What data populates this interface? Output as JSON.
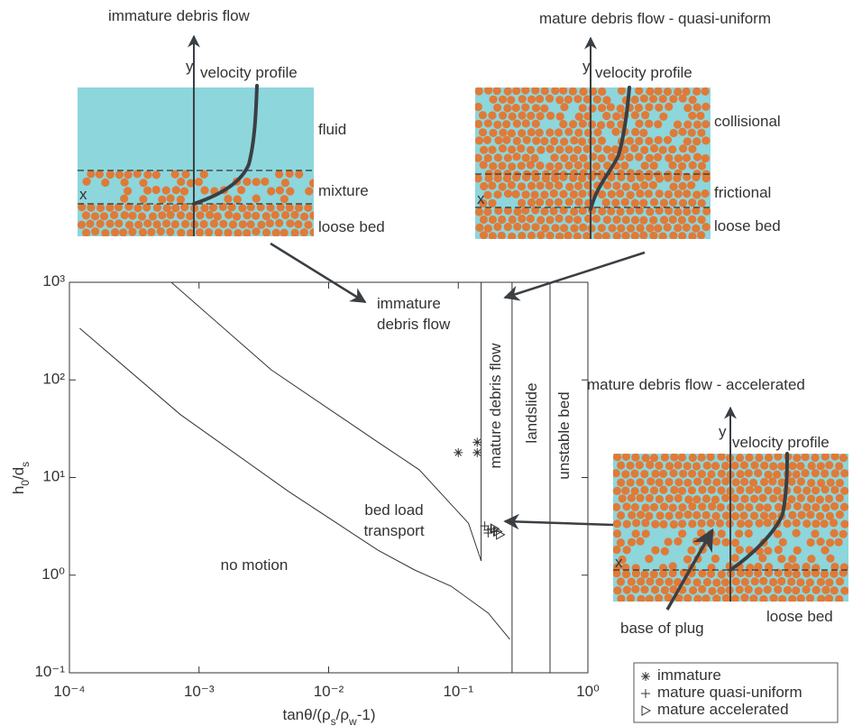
{
  "chart_data": {
    "type": "scatter",
    "x_label": "tanθ/(ρ_s/ρ_w-1)",
    "y_label": "h_0/d_s",
    "log_x": true,
    "log_y": true,
    "xlim": [
      0.0001,
      1
    ],
    "ylim": [
      0.1,
      1000
    ],
    "xticks": [
      {
        "value": 0.0001,
        "label": "10⁻⁴"
      },
      {
        "value": 0.001,
        "label": "10⁻³"
      },
      {
        "value": 0.01,
        "label": "10⁻²"
      },
      {
        "value": 0.1,
        "label": "10⁻¹"
      },
      {
        "value": 1,
        "label": "10⁰"
      }
    ],
    "yticks": [
      {
        "value": 0.1,
        "label": "10⁻¹"
      },
      {
        "value": 1,
        "label": "10⁰"
      },
      {
        "value": 10,
        "label": "10¹"
      },
      {
        "value": 100,
        "label": "10²"
      },
      {
        "value": 1000,
        "label": "10³"
      }
    ],
    "lines": [
      {
        "x": [
          0.00012,
          0.00072,
          0.0049,
          0.024,
          0.046,
          0.088,
          0.17,
          0.25
        ],
        "y": [
          338,
          44,
          7.2,
          1.8,
          1.13,
          0.77,
          0.41,
          0.22
        ]
      },
      {
        "x": [
          0.00061,
          0.0036,
          0.024,
          0.05,
          0.12,
          0.15
        ],
        "y": [
          1000,
          127,
          23,
          12,
          3.4,
          1.4
        ]
      },
      {
        "x": [
          0.15,
          0.15
        ],
        "y": [
          1000,
          1.4
        ]
      },
      {
        "x": [
          0.26,
          0.26
        ],
        "y": [
          0.1,
          1000
        ]
      },
      {
        "x": [
          0.51,
          0.51
        ],
        "y": [
          0.1,
          1000
        ]
      }
    ],
    "series": [
      {
        "name": "immature",
        "marker": "asterisk",
        "color": "#333333",
        "x": [
          0.1,
          0.14,
          0.14
        ],
        "values": [
          18,
          23,
          18
        ]
      },
      {
        "name": "mature quasi-uniform",
        "marker": "plus",
        "color": "#333333",
        "x": [
          0.16,
          0.17,
          0.18,
          0.19,
          0.17
        ],
        "values": [
          3.2,
          2.9,
          3.0,
          2.8,
          2.7
        ]
      },
      {
        "name": "mature accelerated",
        "marker": "triangle",
        "color": "#333333",
        "x": [
          0.19,
          0.2,
          0.21
        ],
        "values": [
          3.0,
          2.8,
          2.6
        ]
      }
    ],
    "annotations": [
      [
        "no motion"
      ],
      [
        "bed load",
        "transport"
      ],
      [
        "immature",
        "debris flow"
      ],
      [
        "mature debris flow"
      ],
      [
        "landslide"
      ],
      [
        "unstable bed"
      ]
    ]
  },
  "insets": [
    {
      "title": "immature debris flow",
      "axis_y": "y",
      "axis_x": "x",
      "profile_label": "velocity profile",
      "layers": [
        "fluid",
        "mixture",
        "loose bed"
      ]
    },
    {
      "title": "mature debris flow - quasi-uniform",
      "axis_y": "y",
      "axis_x": "x",
      "profile_label": "velocity profile",
      "layers": [
        "collisional",
        "frictional",
        "loose bed"
      ]
    },
    {
      "title": "mature debris flow - accelerated",
      "axis_y": "y",
      "axis_x": "x",
      "profile_label": "velocity profile",
      "layers": [
        "loose bed"
      ],
      "callout": "base of plug"
    }
  ]
}
